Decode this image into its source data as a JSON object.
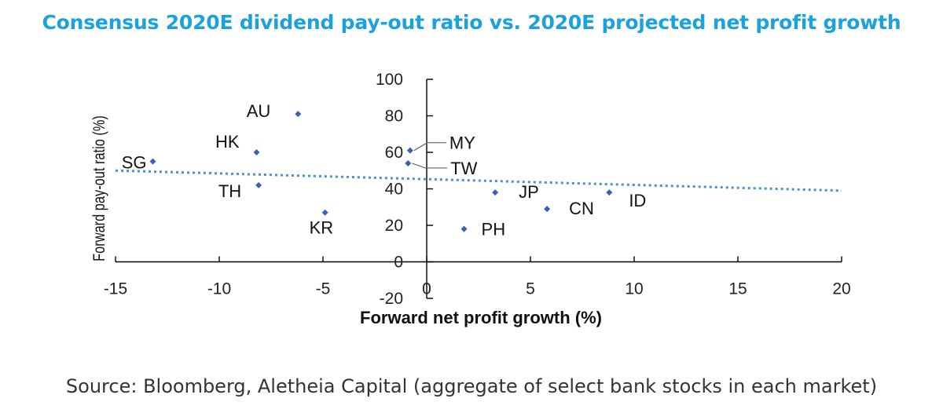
{
  "title": "Consensus 2020E dividend pay-out ratio vs. 2020E projected net profit growth",
  "source": "Source: Bloomberg, Aletheia Capital (aggregate of select bank stocks in each market)",
  "chart_data": {
    "type": "scatter",
    "xlabel": "Forward net profit growth (%)",
    "ylabel": "Forward pay-out ratio (%)",
    "xlim": [
      -15,
      20
    ],
    "ylim": [
      -20,
      100
    ],
    "x_ticks": [
      "-15",
      "-10",
      "-5",
      "0",
      "5",
      "10",
      "15",
      "20"
    ],
    "y_ticks": [
      "-20",
      "0",
      "20",
      "40",
      "60",
      "80",
      "100"
    ],
    "points": [
      {
        "label": "AU",
        "x": -6.2,
        "y": 81
      },
      {
        "label": "HK",
        "x": -8.2,
        "y": 60
      },
      {
        "label": "SG",
        "x": -13.2,
        "y": 55
      },
      {
        "label": "TH",
        "x": -8.1,
        "y": 42
      },
      {
        "label": "KR",
        "x": -4.9,
        "y": 27
      },
      {
        "label": "MY",
        "x": -0.8,
        "y": 61
      },
      {
        "label": "TW",
        "x": -0.9,
        "y": 54
      },
      {
        "label": "JP",
        "x": 3.3,
        "y": 38
      },
      {
        "label": "CN",
        "x": 5.8,
        "y": 29
      },
      {
        "label": "ID",
        "x": 8.8,
        "y": 38
      },
      {
        "label": "PH",
        "x": 1.8,
        "y": 18
      }
    ],
    "trendline": {
      "x": [
        -15,
        20
      ],
      "y": [
        50,
        39
      ]
    },
    "colors": {
      "marker": "#3a62b0",
      "trendline": "#4d8fcf",
      "axis": "#000000",
      "title": "#1ba1dc"
    }
  }
}
